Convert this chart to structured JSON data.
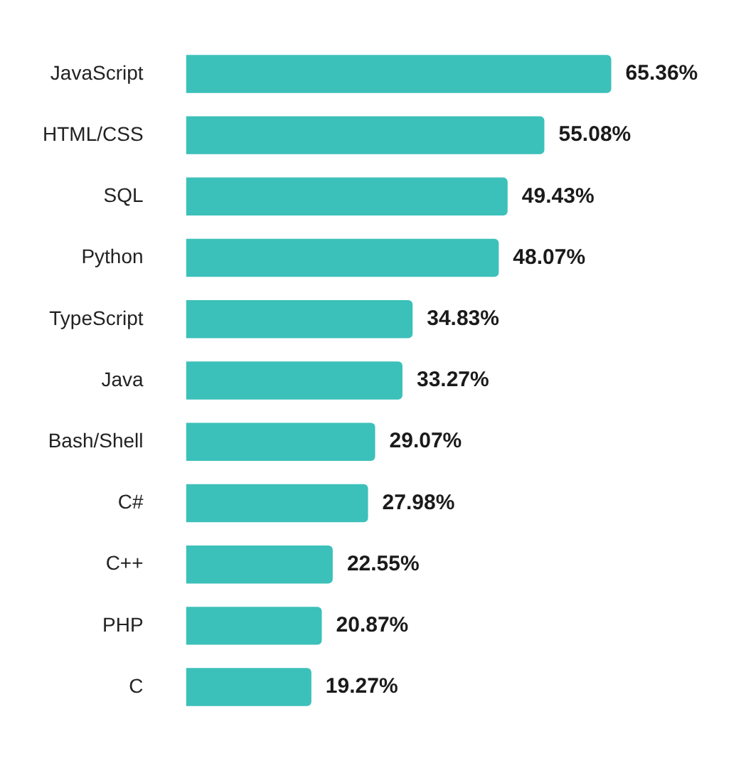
{
  "chart_data": {
    "type": "bar",
    "orientation": "horizontal",
    "categories": [
      "JavaScript",
      "HTML/CSS",
      "SQL",
      "Python",
      "TypeScript",
      "Java",
      "Bash/Shell",
      "C#",
      "C++",
      "PHP",
      "C"
    ],
    "values": [
      65.36,
      55.08,
      49.43,
      48.07,
      34.83,
      33.27,
      29.07,
      27.98,
      22.55,
      20.87,
      19.27
    ],
    "value_labels": [
      "65.36%",
      "55.08%",
      "49.43%",
      "48.07%",
      "34.83%",
      "33.27%",
      "29.07%",
      "27.98%",
      "22.55%",
      "20.87%",
      "19.27%"
    ],
    "color": "#3cc0ba",
    "tick_labels": "y",
    "legend": false
  }
}
